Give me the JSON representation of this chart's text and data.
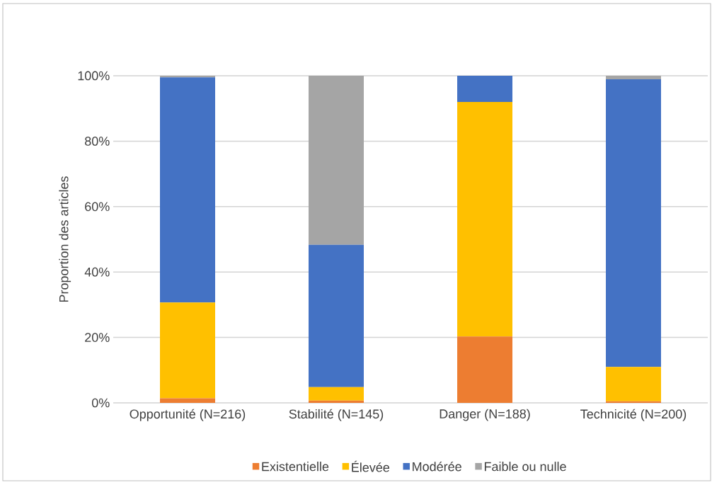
{
  "chart_data": {
    "type": "bar",
    "stacked": true,
    "ylabel": "Proportion des articles",
    "categories": [
      "Opportunité (N=216)",
      "Stabilité (N=145)",
      "Danger (N=188)",
      "Technicité (N=200)"
    ],
    "series": [
      {
        "name": "Existentielle",
        "color": "#ed7d31",
        "values": [
          1.4,
          0.7,
          20.3,
          0.5
        ]
      },
      {
        "name": "Élevée",
        "color": "#ffc000",
        "values": [
          29.3,
          4.1,
          71.7,
          10.5
        ]
      },
      {
        "name": "Modérée",
        "color": "#4472c4",
        "values": [
          68.8,
          43.5,
          8.0,
          87.9
        ]
      },
      {
        "name": "Faible ou nulle",
        "color": "#a5a5a5",
        "values": [
          0.5,
          51.7,
          0.0,
          1.1
        ]
      }
    ],
    "ylim": [
      0,
      100
    ],
    "yticks": [
      {
        "value": 0,
        "label": "0%"
      },
      {
        "value": 20,
        "label": "20%"
      },
      {
        "value": 40,
        "label": "40%"
      },
      {
        "value": 60,
        "label": "60%"
      },
      {
        "value": 80,
        "label": "80%"
      },
      {
        "value": 100,
        "label": "100%"
      }
    ],
    "grid": "y",
    "legend": "bottom"
  }
}
